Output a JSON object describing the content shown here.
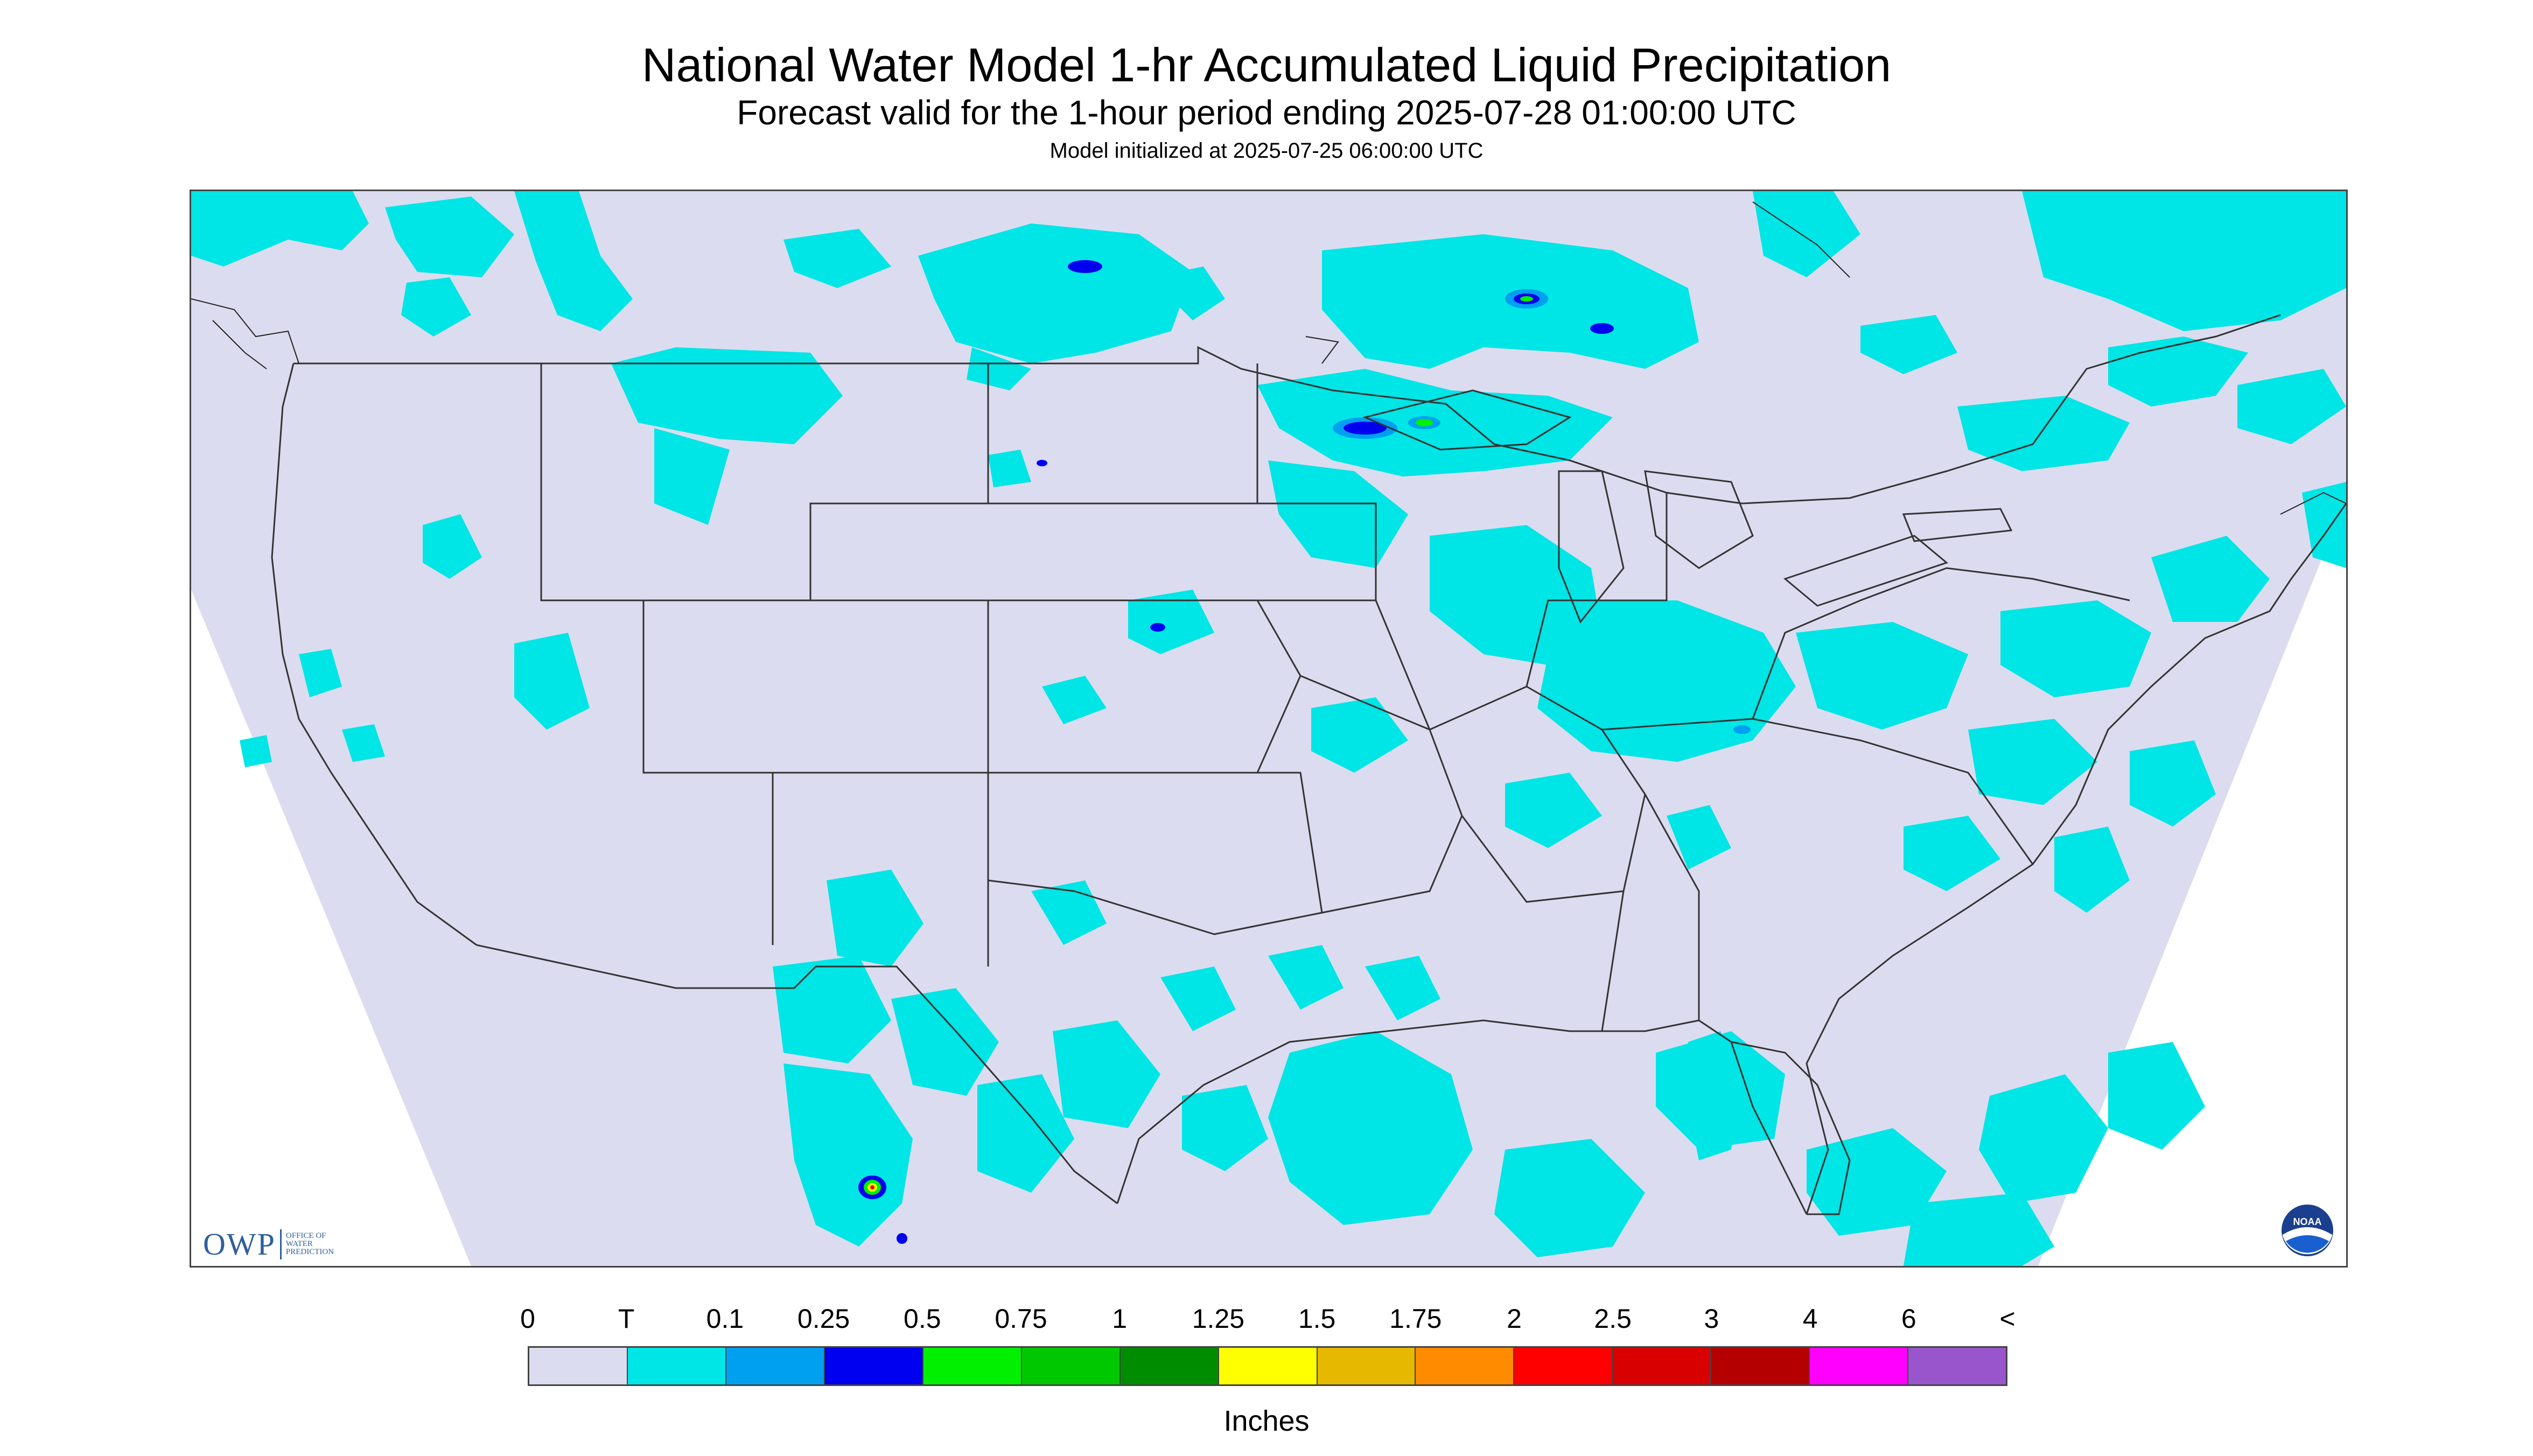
{
  "title": "National Water Model 1-hr Accumulated Liquid Precipitation",
  "subtitle": "Forecast valid for the 1-hour period ending 2025-07-28 01:00:00 UTC",
  "init_text": "Model initialized at 2025-07-25 06:00:00 UTC",
  "logo_owp": {
    "mark": "OWP",
    "line1": "OFFICE OF",
    "line2": "WATER",
    "line3": "PREDICTION"
  },
  "logo_noaa": {
    "text": "NOAA",
    "icon": "noaa-logo"
  },
  "legend": {
    "units": "Inches",
    "tick_labels": [
      "0",
      "T",
      "0.1",
      "0.25",
      "0.5",
      "0.75",
      "1",
      "1.25",
      "1.5",
      "1.75",
      "2",
      "2.5",
      "3",
      "4",
      "6",
      "<"
    ],
    "colors": [
      "#dcdcf0",
      "#00e5e5",
      "#00a0f0",
      "#0000f0",
      "#00f000",
      "#00c800",
      "#008c00",
      "#ffff00",
      "#e6b800",
      "#ff8c00",
      "#ff0000",
      "#d80000",
      "#b40000",
      "#ff00ff",
      "#9955cc"
    ]
  },
  "colors": {
    "no_precip": "#dcdcf0",
    "trace": "#00e5e5",
    "border": "#444444"
  }
}
